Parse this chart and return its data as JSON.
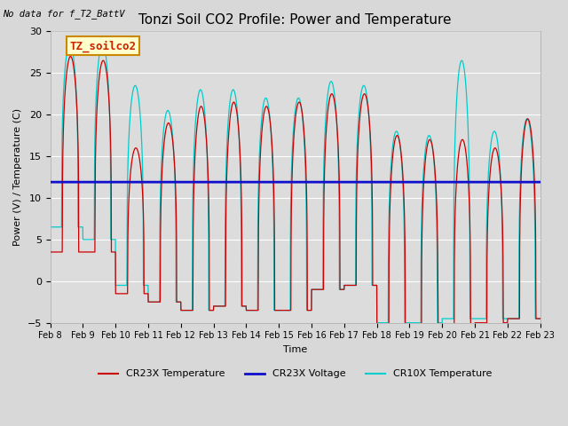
{
  "title": "Tonzi Soil CO2 Profile: Power and Temperature",
  "no_data_text": "No data for f_T2_BattV",
  "ylabel": "Power (V) / Temperature (C)",
  "xlabel": "Time",
  "ylim": [
    -5,
    30
  ],
  "voltage_value": 11.9,
  "legend_box_label": "TZ_soilco2",
  "legend_entries": [
    "CR23X Temperature",
    "CR23X Voltage",
    "CR10X Temperature"
  ],
  "legend_colors": [
    "#cc0000",
    "#0000cc",
    "#00cccc"
  ],
  "x_tick_labels": [
    "Feb 8",
    "Feb 9",
    "Feb 10",
    "Feb 11",
    "Feb 12",
    "Feb 13",
    "Feb 14",
    "Feb 15",
    "Feb 16",
    "Feb 17",
    "Feb 18",
    "Feb 19",
    "Feb 20",
    "Feb 21",
    "Feb 22",
    "Feb 23"
  ],
  "fig_bg_color": "#d8d8d8",
  "plot_bg_color": "#dcdcdc",
  "title_fontsize": 11,
  "label_fontsize": 8,
  "tick_fontsize": 7,
  "n_days": 15,
  "cr23x_peaks": [
    27.0,
    26.5,
    16.0,
    19.0,
    21.0,
    21.5,
    21.0,
    21.5,
    22.5,
    22.5,
    17.5,
    17.0,
    17.0,
    16.0,
    19.5
  ],
  "cr23x_mins": [
    3.5,
    3.5,
    -1.5,
    -2.5,
    -3.5,
    -3.0,
    -3.5,
    -3.5,
    -1.0,
    -0.5,
    -5.5,
    -5.5,
    -5.5,
    -5.0,
    -4.5
  ],
  "cr10x_peaks": [
    28.5,
    28.5,
    23.5,
    20.5,
    23.0,
    23.0,
    22.0,
    22.0,
    24.0,
    23.5,
    18.0,
    17.5,
    26.5,
    18.0,
    19.5
  ],
  "cr10x_mins": [
    6.5,
    5.0,
    -0.5,
    -2.5,
    -3.5,
    -3.0,
    -3.5,
    -3.5,
    -1.0,
    -0.5,
    -5.0,
    -5.0,
    -4.5,
    -4.5,
    -4.5
  ],
  "cr23x_peak_phase": 0.62,
  "cr10x_peak_phase": 0.6,
  "sharpness": 3.5
}
